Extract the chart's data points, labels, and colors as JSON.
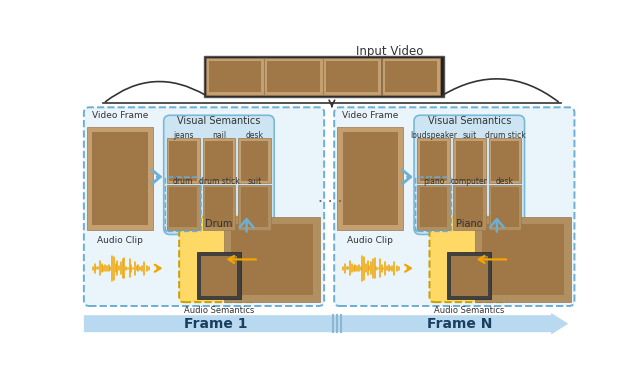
{
  "title": "Input Video",
  "frame1_label": "Frame 1",
  "frameN_label": "Frame N",
  "video_frame_label": "Video Frame",
  "audio_clip_label": "Audio Clip",
  "visual_semantics_label": "Visual Semantics",
  "audio_semantics_label": "Audio Semantics",
  "frame1_visual_tags_row1": [
    "jeans",
    "nail",
    "desk"
  ],
  "frame1_visual_tags_row2": [
    "drum",
    "drum stick",
    "suit"
  ],
  "frameN_visual_tags_row1": [
    "loudspeaker",
    "suit",
    "drum stick"
  ],
  "frameN_visual_tags_row2": [
    "piano",
    "computer",
    "desk"
  ],
  "frame1_audio_label": "Drum",
  "frameN_audio_label": "Piano",
  "bg_color": "#ffffff",
  "outer_box_edge": "#6baed6",
  "outer_box_fill": "#eaf4fb",
  "visual_sem_edge": "#7ab8d8",
  "visual_sem_fill": "#cde4f2",
  "audio_sem_edge": "#c8a000",
  "audio_sem_fill": "#ffd966",
  "arrow_blue": "#6baed6",
  "arrow_gold": "#f0a500",
  "bottom_arrow": "#b8d9ef",
  "sepia_light": "#d4b483",
  "sepia_dark": "#9b7a4a",
  "text_dark": "#333333",
  "text_medium": "#444444",
  "brace_color": "#333333",
  "dots_color": "#666666",
  "video_strip_bg": "#222222",
  "video_strip_border": "#555555",
  "highlight_box_edge": "#6baed6"
}
